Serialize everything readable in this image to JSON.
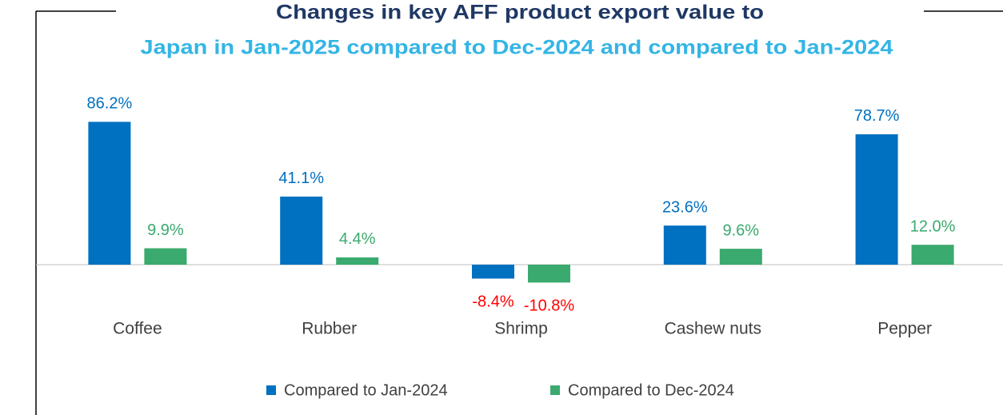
{
  "chart_data": {
    "type": "bar",
    "title": "Changes in key AFF product export value to",
    "subtitle": "Japan in Jan-2025 compared to Dec-2024 and compared to Jan-2024",
    "categories": [
      "Coffee",
      "Rubber",
      "Shrimp",
      "Cashew nuts",
      "Pepper"
    ],
    "series": [
      {
        "name": "Compared to Jan-2024",
        "color": "#0070c0",
        "label_color": "#0070c0",
        "negative_label_color": "#ff0000",
        "values": [
          86.2,
          41.1,
          -8.4,
          23.6,
          78.7
        ],
        "value_labels": [
          "86.2%",
          "41.1%",
          "-8.4%",
          "23.6%",
          "78.7%"
        ]
      },
      {
        "name": "Compared to Dec-2024",
        "color": "#3aaa6e",
        "label_color": "#3aaa6e",
        "negative_label_color": "#ff0000",
        "values": [
          9.9,
          4.4,
          -10.8,
          9.6,
          12.0
        ],
        "value_labels": [
          "9.9%",
          "4.4%",
          "-10.8%",
          "9.6%",
          "12.0%"
        ]
      }
    ],
    "legend": "bottom"
  }
}
